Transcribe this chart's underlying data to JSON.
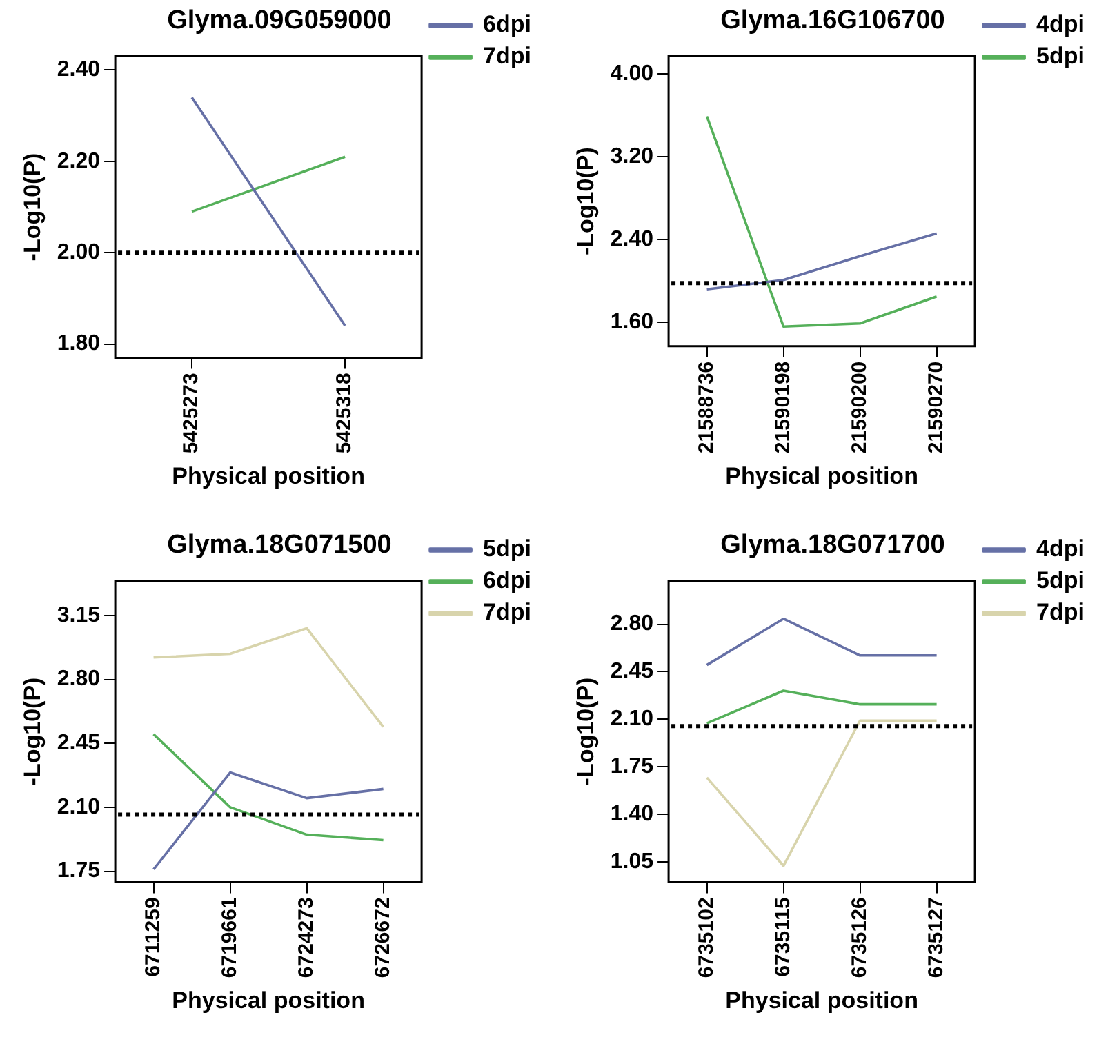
{
  "chart_data": [
    {
      "type": "line",
      "title": "Glyma.09G059000",
      "xlabel": "Physical position",
      "ylabel": "-Log10(P)",
      "categories": [
        "5425273",
        "5425318"
      ],
      "series": [
        {
          "name": "6dpi",
          "color": "#6670a6",
          "values": [
            2.34,
            1.84
          ]
        },
        {
          "name": "7dpi",
          "color": "#55b05a",
          "values": [
            2.09,
            2.21
          ]
        }
      ],
      "ylim": [
        1.77,
        2.43
      ],
      "yticks": [
        {
          "value": 1.8,
          "label": "1.80"
        },
        {
          "value": 2.0,
          "label": "2.00"
        },
        {
          "value": 2.2,
          "label": "2.20"
        },
        {
          "value": 2.4,
          "label": "2.40"
        }
      ],
      "ref_lines": [
        {
          "axis": "y",
          "value": 2.0,
          "color": "#000000",
          "line_style": "dotted"
        }
      ],
      "legend": "top right"
    },
    {
      "type": "line",
      "title": "Glyma.16G106700",
      "xlabel": "Physical position",
      "ylabel": "-Log10(P)",
      "categories": [
        "21588736",
        "21590198",
        "21590200",
        "21590270"
      ],
      "series": [
        {
          "name": "4dpi",
          "color": "#6670a6",
          "values": [
            1.92,
            2.01,
            2.24,
            2.46
          ]
        },
        {
          "name": "5dpi",
          "color": "#55b05a",
          "values": [
            3.59,
            1.56,
            1.59,
            1.85
          ]
        }
      ],
      "ylim": [
        1.37,
        4.17
      ],
      "yticks": [
        {
          "value": 1.6,
          "label": "1.60"
        },
        {
          "value": 2.4,
          "label": "2.40"
        },
        {
          "value": 3.2,
          "label": "3.20"
        },
        {
          "value": 4.0,
          "label": "4.00"
        }
      ],
      "ref_lines": [
        {
          "axis": "y",
          "value": 1.98,
          "color": "#000000",
          "line_style": "dotted"
        }
      ],
      "legend": "top right"
    },
    {
      "type": "line",
      "title": "Glyma.18G071500",
      "xlabel": "Physical position",
      "ylabel": "-Log10(P)",
      "categories": [
        "6711259",
        "6719661",
        "6724273",
        "6726672"
      ],
      "series": [
        {
          "name": "5dpi",
          "color": "#6670a6",
          "values": [
            1.76,
            2.29,
            2.15,
            2.2
          ]
        },
        {
          "name": "6dpi",
          "color": "#55b05a",
          "values": [
            2.5,
            2.1,
            1.95,
            1.92
          ]
        },
        {
          "name": "7dpi",
          "color": "#d8d4ac",
          "values": [
            2.92,
            2.94,
            3.08,
            2.54
          ]
        }
      ],
      "ylim": [
        1.69,
        3.34
      ],
      "yticks": [
        {
          "value": 1.75,
          "label": "1.75"
        },
        {
          "value": 2.1,
          "label": "2.10"
        },
        {
          "value": 2.45,
          "label": "2.45"
        },
        {
          "value": 2.8,
          "label": "2.80"
        },
        {
          "value": 3.15,
          "label": "3.15"
        }
      ],
      "ref_lines": [
        {
          "axis": "y",
          "value": 2.06,
          "color": "#000000",
          "line_style": "dotted"
        }
      ],
      "legend": "top right"
    },
    {
      "type": "line",
      "title": "Glyma.18G071700",
      "xlabel": "Physical position",
      "ylabel": "-Log10(P)",
      "categories": [
        "6735102",
        "6735115",
        "6735126",
        "6735127"
      ],
      "series": [
        {
          "name": "4dpi",
          "color": "#6670a6",
          "values": [
            2.5,
            2.84,
            2.57,
            2.57
          ]
        },
        {
          "name": "5dpi",
          "color": "#55b05a",
          "values": [
            2.07,
            2.31,
            2.21,
            2.21
          ]
        },
        {
          "name": "7dpi",
          "color": "#d8d4ac",
          "values": [
            1.67,
            1.02,
            2.09,
            2.09
          ]
        }
      ],
      "ylim": [
        0.9,
        3.12
      ],
      "yticks": [
        {
          "value": 1.05,
          "label": "1.05"
        },
        {
          "value": 1.4,
          "label": "1.40"
        },
        {
          "value": 1.75,
          "label": "1.75"
        },
        {
          "value": 2.1,
          "label": "2.10"
        },
        {
          "value": 2.45,
          "label": "2.45"
        },
        {
          "value": 2.8,
          "label": "2.80"
        }
      ],
      "ref_lines": [
        {
          "axis": "y",
          "value": 2.05,
          "color": "#000000",
          "line_style": "dotted"
        }
      ],
      "legend": "top right"
    }
  ]
}
